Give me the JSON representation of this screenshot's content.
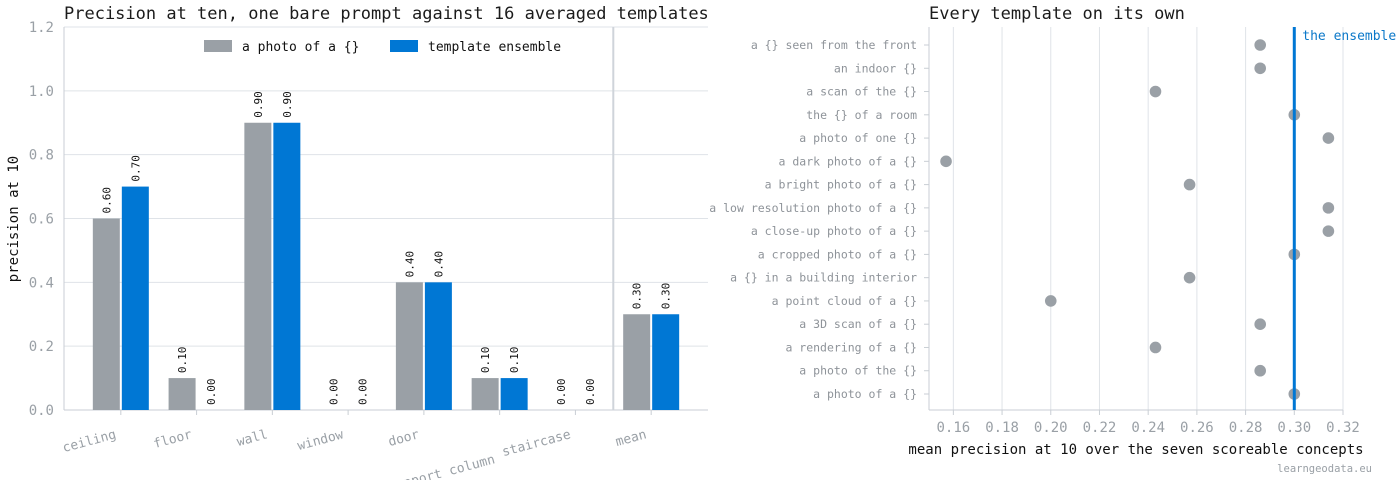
{
  "chart_data": [
    {
      "type": "bar",
      "title": "Precision at ten, one bare prompt against 16 averaged templates",
      "ylabel": "precision at 10",
      "xlabel": "",
      "ylim": [
        0,
        1.2
      ],
      "yticks": [
        "0.0",
        "0.2",
        "0.4",
        "0.6",
        "0.8",
        "1.0",
        "1.2"
      ],
      "categories": [
        "ceiling",
        "floor",
        "wall",
        "window",
        "door",
        "support column",
        "staircase",
        "mean"
      ],
      "series": [
        {
          "name": "a photo of a {}",
          "color": "#9aa0a6",
          "values": [
            0.6,
            0.1,
            0.9,
            0.0,
            0.4,
            0.1,
            0.0,
            0.3
          ],
          "labels": [
            "0.60",
            "0.10",
            "0.90",
            "0.00",
            "0.40",
            "0.10",
            "0.00",
            "0.30"
          ]
        },
        {
          "name": "template ensemble",
          "color": "#0077d4",
          "values": [
            0.7,
            0.0,
            0.9,
            0.0,
            0.4,
            0.1,
            0.0,
            0.3
          ],
          "labels": [
            "0.70",
            "0.00",
            "0.90",
            "0.00",
            "0.40",
            "0.10",
            "0.00",
            "0.30"
          ]
        }
      ],
      "grid": true,
      "legend": "top-center"
    },
    {
      "type": "scatter",
      "title": "Every template on its own",
      "xlabel": "mean precision at 10 over the seven scoreable concepts",
      "ylabel": "",
      "xlim": [
        0.15,
        0.32
      ],
      "xticks": [
        "0.16",
        "0.18",
        "0.20",
        "0.22",
        "0.24",
        "0.26",
        "0.28",
        "0.30",
        "0.32"
      ],
      "templates": [
        "a {} seen from the front",
        "an indoor {}",
        "a scan of the {}",
        "the {} of a room",
        "a photo of one {}",
        "a dark photo of a {}",
        "a bright photo of a {}",
        "a low resolution photo of a {}",
        "a close-up photo of a {}",
        "a cropped photo of a {}",
        "a {} in a building interior",
        "a point cloud of a {}",
        "a 3D scan of a {}",
        "a rendering of a {}",
        "a photo of the {}",
        "a photo of a {}"
      ],
      "values": [
        0.286,
        0.286,
        0.243,
        0.3,
        0.314,
        0.157,
        0.257,
        0.314,
        0.314,
        0.3,
        0.257,
        0.2,
        0.286,
        0.243,
        0.286,
        0.3
      ],
      "reference_line": {
        "value": 0.3,
        "label": "the ensemble",
        "color": "#0077d4"
      },
      "point_color": "#9aa0a6",
      "grid": true
    }
  ],
  "footer": "learngeodata.eu"
}
